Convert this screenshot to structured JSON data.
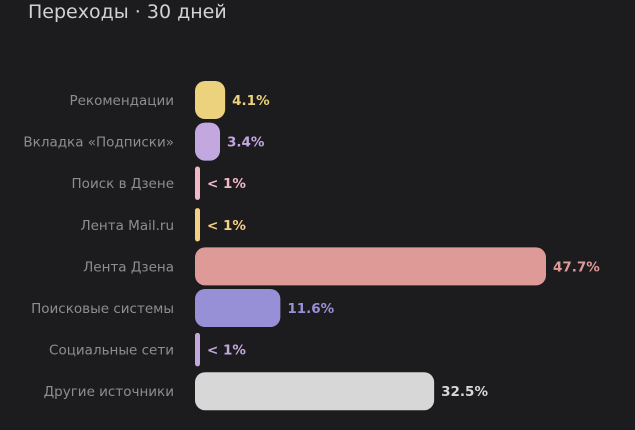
{
  "title": "Переходы · 30 дней",
  "chart_data": {
    "type": "bar",
    "orientation": "horizontal",
    "title": "Переходы · 30 дней",
    "categories": [
      "Рекомендации",
      "Вкладка «Подписки»",
      "Поиск в Дзене",
      "Лента Mail.ru",
      "Лента Дзена",
      "Поисковые системы",
      "Социальные сети",
      "Другие источники"
    ],
    "values": [
      4.1,
      3.4,
      0.3,
      0.3,
      47.7,
      11.6,
      0.3,
      32.5
    ],
    "value_labels": [
      "4.1%",
      "3.4%",
      "< 1%",
      "< 1%",
      "47.7%",
      "11.6%",
      "< 1%",
      "32.5%"
    ],
    "colors": [
      "#ecd27c",
      "#c3a8e0",
      "#f1b8c8",
      "#f5cf84",
      "#de9a97",
      "#9890d6",
      "#c3a8e0",
      "#d7d7d7"
    ],
    "xlim": [
      0,
      47.7
    ],
    "unit": "%",
    "grid": false,
    "legend": "none"
  }
}
